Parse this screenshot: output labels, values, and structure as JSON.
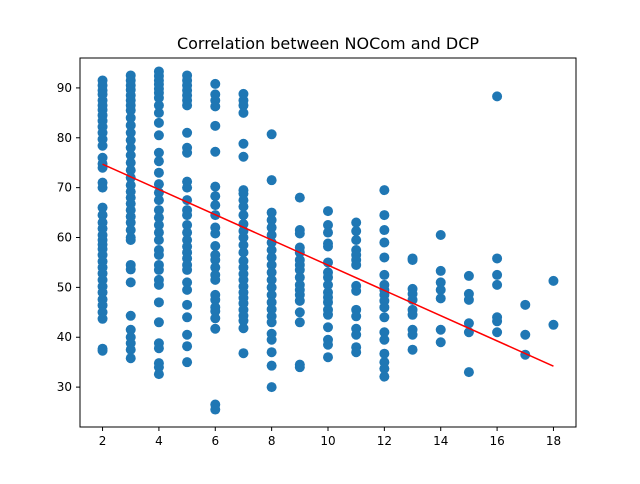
{
  "chart_data": {
    "type": "scatter",
    "title": "Correlation between NOCom and DCP",
    "xlabel": "",
    "ylabel": "",
    "xlim": [
      1.2,
      18.8
    ],
    "ylim": [
      22.0,
      96.0
    ],
    "x_ticks": [
      2,
      4,
      6,
      8,
      10,
      12,
      14,
      16,
      18
    ],
    "x_tick_labels": [
      "2",
      "4",
      "6",
      "8",
      "10",
      "12",
      "14",
      "16",
      "18"
    ],
    "y_ticks": [
      30,
      40,
      50,
      60,
      70,
      80,
      90
    ],
    "y_tick_labels": [
      "30",
      "40",
      "50",
      "60",
      "70",
      "80",
      "90"
    ],
    "grid": false,
    "colors": {
      "points": "#1f77b4",
      "trend_line": "#ff0000",
      "axes": "#000000"
    },
    "series": [
      {
        "kind": "points",
        "points": [
          [
            2,
            91.5
          ],
          [
            2,
            90.5
          ],
          [
            2,
            89.5
          ],
          [
            2,
            88.7
          ],
          [
            2,
            87.5
          ],
          [
            2,
            86.5
          ],
          [
            2,
            85.6
          ],
          [
            2,
            84.5
          ],
          [
            2,
            83.4
          ],
          [
            2,
            82.2
          ],
          [
            2,
            81
          ],
          [
            2,
            79.7
          ],
          [
            2,
            78.4
          ],
          [
            2,
            76
          ],
          [
            2,
            74.8
          ],
          [
            2,
            74
          ],
          [
            2,
            71
          ],
          [
            2,
            70
          ],
          [
            2,
            66
          ],
          [
            2,
            64.5
          ],
          [
            2,
            63
          ],
          [
            2,
            61.8
          ],
          [
            2,
            60.5
          ],
          [
            2,
            59.5
          ],
          [
            2,
            58.6
          ],
          [
            2,
            57.7
          ],
          [
            2,
            56.5
          ],
          [
            2,
            55.2
          ],
          [
            2,
            54
          ],
          [
            2,
            52.8
          ],
          [
            2,
            51.5
          ],
          [
            2,
            50.2
          ],
          [
            2,
            49
          ],
          [
            2,
            47.6
          ],
          [
            2,
            46.4
          ],
          [
            2,
            45
          ],
          [
            2,
            43.7
          ],
          [
            2,
            37.7
          ],
          [
            2,
            37.3
          ],
          [
            3,
            92.5
          ],
          [
            3,
            91.5
          ],
          [
            3,
            90.5
          ],
          [
            3,
            89.6
          ],
          [
            3,
            88.5
          ],
          [
            3,
            87.5
          ],
          [
            3,
            86.5
          ],
          [
            3,
            85.5
          ],
          [
            3,
            84
          ],
          [
            3,
            82.5
          ],
          [
            3,
            81
          ],
          [
            3,
            79.5
          ],
          [
            3,
            78
          ],
          [
            3,
            76.5
          ],
          [
            3,
            75
          ],
          [
            3,
            73.5
          ],
          [
            3,
            72
          ],
          [
            3,
            70.5
          ],
          [
            3,
            69.2
          ],
          [
            3,
            68
          ],
          [
            3,
            66.8
          ],
          [
            3,
            65.5
          ],
          [
            3,
            64.2
          ],
          [
            3,
            63
          ],
          [
            3,
            61.5
          ],
          [
            3,
            60
          ],
          [
            3,
            59.5
          ],
          [
            3,
            54.5
          ],
          [
            3,
            53.6
          ],
          [
            3,
            51
          ],
          [
            3,
            44.3
          ],
          [
            3,
            41.5
          ],
          [
            3,
            40
          ],
          [
            3,
            38.8
          ],
          [
            3,
            37.5
          ],
          [
            3,
            35.8
          ],
          [
            4,
            93.3
          ],
          [
            4,
            92.4
          ],
          [
            4,
            91.5
          ],
          [
            4,
            90.7
          ],
          [
            4,
            89.8
          ],
          [
            4,
            89
          ],
          [
            4,
            88
          ],
          [
            4,
            86.5
          ],
          [
            4,
            85
          ],
          [
            4,
            83
          ],
          [
            4,
            80.5
          ],
          [
            4,
            77
          ],
          [
            4,
            75.3
          ],
          [
            4,
            73
          ],
          [
            4,
            70.7
          ],
          [
            4,
            69
          ],
          [
            4,
            67.5
          ],
          [
            4,
            65.5
          ],
          [
            4,
            64
          ],
          [
            4,
            62.5
          ],
          [
            4,
            61
          ],
          [
            4,
            59.5
          ],
          [
            4,
            57.5
          ],
          [
            4,
            56.5
          ],
          [
            4,
            54.5
          ],
          [
            4,
            53.5
          ],
          [
            4,
            51.5
          ],
          [
            4,
            50.5
          ],
          [
            4,
            47
          ],
          [
            4,
            43
          ],
          [
            4,
            38.8
          ],
          [
            4,
            37.8
          ],
          [
            4,
            34.8
          ],
          [
            4,
            34
          ],
          [
            4,
            32.6
          ],
          [
            5,
            92.5
          ],
          [
            5,
            91.5
          ],
          [
            5,
            90.5
          ],
          [
            5,
            89.5
          ],
          [
            5,
            88.5
          ],
          [
            5,
            87.5
          ],
          [
            5,
            86.5
          ],
          [
            5,
            81
          ],
          [
            5,
            78
          ],
          [
            5,
            77
          ],
          [
            5,
            71.2
          ],
          [
            5,
            70
          ],
          [
            5,
            67.5
          ],
          [
            5,
            65.5
          ],
          [
            5,
            64.5
          ],
          [
            5,
            62.5
          ],
          [
            5,
            61
          ],
          [
            5,
            59.5
          ],
          [
            5,
            58.2
          ],
          [
            5,
            57
          ],
          [
            5,
            55.8
          ],
          [
            5,
            54.5
          ],
          [
            5,
            53.5
          ],
          [
            5,
            51
          ],
          [
            5,
            49.5
          ],
          [
            5,
            46.5
          ],
          [
            5,
            44
          ],
          [
            5,
            40.5
          ],
          [
            5,
            38.2
          ],
          [
            5,
            35
          ],
          [
            6,
            90.8
          ],
          [
            6,
            88.7
          ],
          [
            6,
            87.5
          ],
          [
            6,
            86.3
          ],
          [
            6,
            82.4
          ],
          [
            6,
            77.2
          ],
          [
            6,
            70.2
          ],
          [
            6,
            68.3
          ],
          [
            6,
            66.5
          ],
          [
            6,
            64.5
          ],
          [
            6,
            62
          ],
          [
            6,
            60.8
          ],
          [
            6,
            58.3
          ],
          [
            6,
            56.5
          ],
          [
            6,
            55.5
          ],
          [
            6,
            54
          ],
          [
            6,
            52.5
          ],
          [
            6,
            51.5
          ],
          [
            6,
            48.5
          ],
          [
            6,
            47.5
          ],
          [
            6,
            46
          ],
          [
            6,
            45.2
          ],
          [
            6,
            43.8
          ],
          [
            6,
            41.7
          ],
          [
            6,
            26.5
          ],
          [
            6,
            25.5
          ],
          [
            7,
            88.8
          ],
          [
            7,
            87.5
          ],
          [
            7,
            86.5
          ],
          [
            7,
            85
          ],
          [
            7,
            78.8
          ],
          [
            7,
            76.2
          ],
          [
            7,
            69.5
          ],
          [
            7,
            68.8
          ],
          [
            7,
            67.5
          ],
          [
            7,
            66.2
          ],
          [
            7,
            64.5
          ],
          [
            7,
            62.7
          ],
          [
            7,
            61.3
          ],
          [
            7,
            60
          ],
          [
            7,
            58.5
          ],
          [
            7,
            57
          ],
          [
            7,
            55.3
          ],
          [
            7,
            54
          ],
          [
            7,
            52.7
          ],
          [
            7,
            51.5
          ],
          [
            7,
            50.2
          ],
          [
            7,
            49
          ],
          [
            7,
            47.9
          ],
          [
            7,
            46.8
          ],
          [
            7,
            45.5
          ],
          [
            7,
            44.3
          ],
          [
            7,
            43.3
          ],
          [
            7,
            41.8
          ],
          [
            7,
            36.8
          ],
          [
            8,
            80.7
          ],
          [
            8,
            71.5
          ],
          [
            8,
            65
          ],
          [
            8,
            63.5
          ],
          [
            8,
            62
          ],
          [
            8,
            60.5
          ],
          [
            8,
            59
          ],
          [
            8,
            57.5
          ],
          [
            8,
            56
          ],
          [
            8,
            54.5
          ],
          [
            8,
            53
          ],
          [
            8,
            51.5
          ],
          [
            8,
            50
          ],
          [
            8,
            48.5
          ],
          [
            8,
            47
          ],
          [
            8,
            45.6
          ],
          [
            8,
            44.2
          ],
          [
            8,
            43
          ],
          [
            8,
            40.7
          ],
          [
            8,
            39.5
          ],
          [
            8,
            37
          ],
          [
            8,
            34.3
          ],
          [
            8,
            30
          ],
          [
            9,
            68
          ],
          [
            9,
            61.5
          ],
          [
            9,
            60.8
          ],
          [
            9,
            58
          ],
          [
            9,
            57
          ],
          [
            9,
            55.5
          ],
          [
            9,
            54.5
          ],
          [
            9,
            53.5
          ],
          [
            9,
            52
          ],
          [
            9,
            50.5
          ],
          [
            9,
            49.5
          ],
          [
            9,
            48.5
          ],
          [
            9,
            47.3
          ],
          [
            9,
            45
          ],
          [
            9,
            43
          ],
          [
            9,
            34.5
          ],
          [
            9,
            34
          ],
          [
            10,
            65.3
          ],
          [
            10,
            62.5
          ],
          [
            10,
            61
          ],
          [
            10,
            58.8
          ],
          [
            10,
            58.2
          ],
          [
            10,
            55
          ],
          [
            10,
            53
          ],
          [
            10,
            52
          ],
          [
            10,
            50.5
          ],
          [
            10,
            49
          ],
          [
            10,
            48
          ],
          [
            10,
            47
          ],
          [
            10,
            45.5
          ],
          [
            10,
            44.5
          ],
          [
            10,
            42
          ],
          [
            10,
            39.5
          ],
          [
            10,
            38.5
          ],
          [
            10,
            36
          ],
          [
            11,
            63
          ],
          [
            11,
            61.3
          ],
          [
            11,
            59.5
          ],
          [
            11,
            57.5
          ],
          [
            11,
            56.5
          ],
          [
            11,
            55.5
          ],
          [
            11,
            54.5
          ],
          [
            11,
            50.3
          ],
          [
            11,
            49.3
          ],
          [
            11,
            45.5
          ],
          [
            11,
            44.2
          ],
          [
            11,
            41.7
          ],
          [
            11,
            40.5
          ],
          [
            11,
            38
          ],
          [
            11,
            37
          ],
          [
            12,
            69.5
          ],
          [
            12,
            64.5
          ],
          [
            12,
            61.5
          ],
          [
            12,
            59
          ],
          [
            12,
            56
          ],
          [
            12,
            52.5
          ],
          [
            12,
            50.5
          ],
          [
            12,
            49.5
          ],
          [
            12,
            48.5
          ],
          [
            12,
            47.3
          ],
          [
            12,
            46
          ],
          [
            12,
            44
          ],
          [
            12,
            41
          ],
          [
            12,
            39.5
          ],
          [
            12,
            36.7
          ],
          [
            12,
            35
          ],
          [
            12,
            33.7
          ],
          [
            12,
            32.1
          ],
          [
            13,
            55.8
          ],
          [
            13,
            55.5
          ],
          [
            13,
            49.7
          ],
          [
            13,
            48.7
          ],
          [
            13,
            47.5
          ],
          [
            13,
            45.5
          ],
          [
            13,
            44.5
          ],
          [
            13,
            41.5
          ],
          [
            13,
            40.5
          ],
          [
            13,
            37.5
          ],
          [
            14,
            60.5
          ],
          [
            14,
            53.3
          ],
          [
            14,
            51
          ],
          [
            14,
            49.5
          ],
          [
            14,
            47.8
          ],
          [
            14,
            41.5
          ],
          [
            14,
            39
          ],
          [
            15,
            52.3
          ],
          [
            15,
            48.7
          ],
          [
            15,
            47.5
          ],
          [
            15,
            42.8
          ],
          [
            15,
            41
          ],
          [
            15,
            33
          ],
          [
            16,
            88.3
          ],
          [
            16,
            55.8
          ],
          [
            16,
            52.5
          ],
          [
            16,
            50.5
          ],
          [
            16,
            44
          ],
          [
            16,
            43.2
          ],
          [
            16,
            41
          ],
          [
            17,
            46.5
          ],
          [
            17,
            40.5
          ],
          [
            17,
            36.5
          ],
          [
            18,
            51.3
          ],
          [
            18,
            42.5
          ]
        ]
      },
      {
        "kind": "trend_line",
        "points": [
          [
            2,
            74.7
          ],
          [
            18,
            34.2
          ]
        ]
      }
    ]
  }
}
